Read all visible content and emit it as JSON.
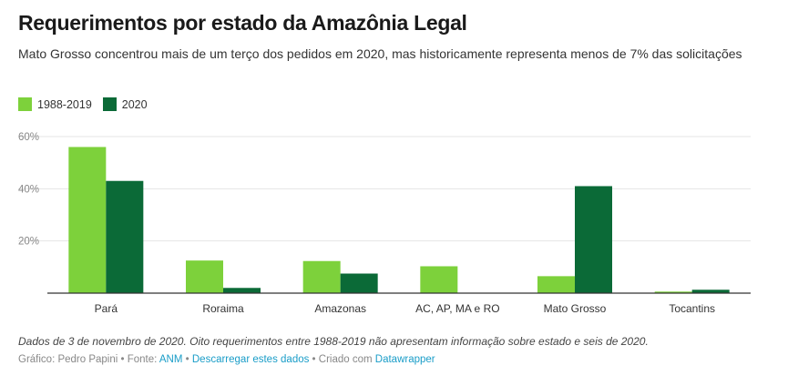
{
  "header": {
    "title": "Requerimentos por estado da Amazônia Legal",
    "subtitle": "Mato Grosso concentrou mais de um terço dos pedidos em 2020, mas historicamente representa menos de 7% das solicitações"
  },
  "colors": {
    "s1": "#7dd13b",
    "s2": "#0b6a37"
  },
  "chart_data": {
    "type": "bar",
    "categories": [
      "Pará",
      "Roraima",
      "Amazonas",
      "AC, AP, MA e RO",
      "Mato Grosso",
      "Tocantins"
    ],
    "series": [
      {
        "name": "1988-2019",
        "values": [
          56,
          12.5,
          12.3,
          10.3,
          6.5,
          0.6
        ]
      },
      {
        "name": "2020",
        "values": [
          43,
          2,
          7.5,
          0,
          41,
          1.3
        ]
      }
    ],
    "ylim": [
      0,
      60
    ],
    "yticks": [
      0,
      20,
      40,
      60
    ],
    "ytick_labels": [
      "",
      "20%",
      "40%",
      "60%"
    ],
    "grid": true,
    "legend": "top-left"
  },
  "footer": {
    "note": "Dados de 3 de novembro de 2020. Oito requerimentos entre 1988-2019 não apresentam informação sobre estado e seis de 2020.",
    "credit_prefix": "Gráfico: Pedro Papini • Fonte: ",
    "source_link": "ANM",
    "sep1": " • ",
    "download_link": "Descarregar estes dados",
    "sep2": " • Criado com ",
    "tool_link": "Datawrapper"
  }
}
